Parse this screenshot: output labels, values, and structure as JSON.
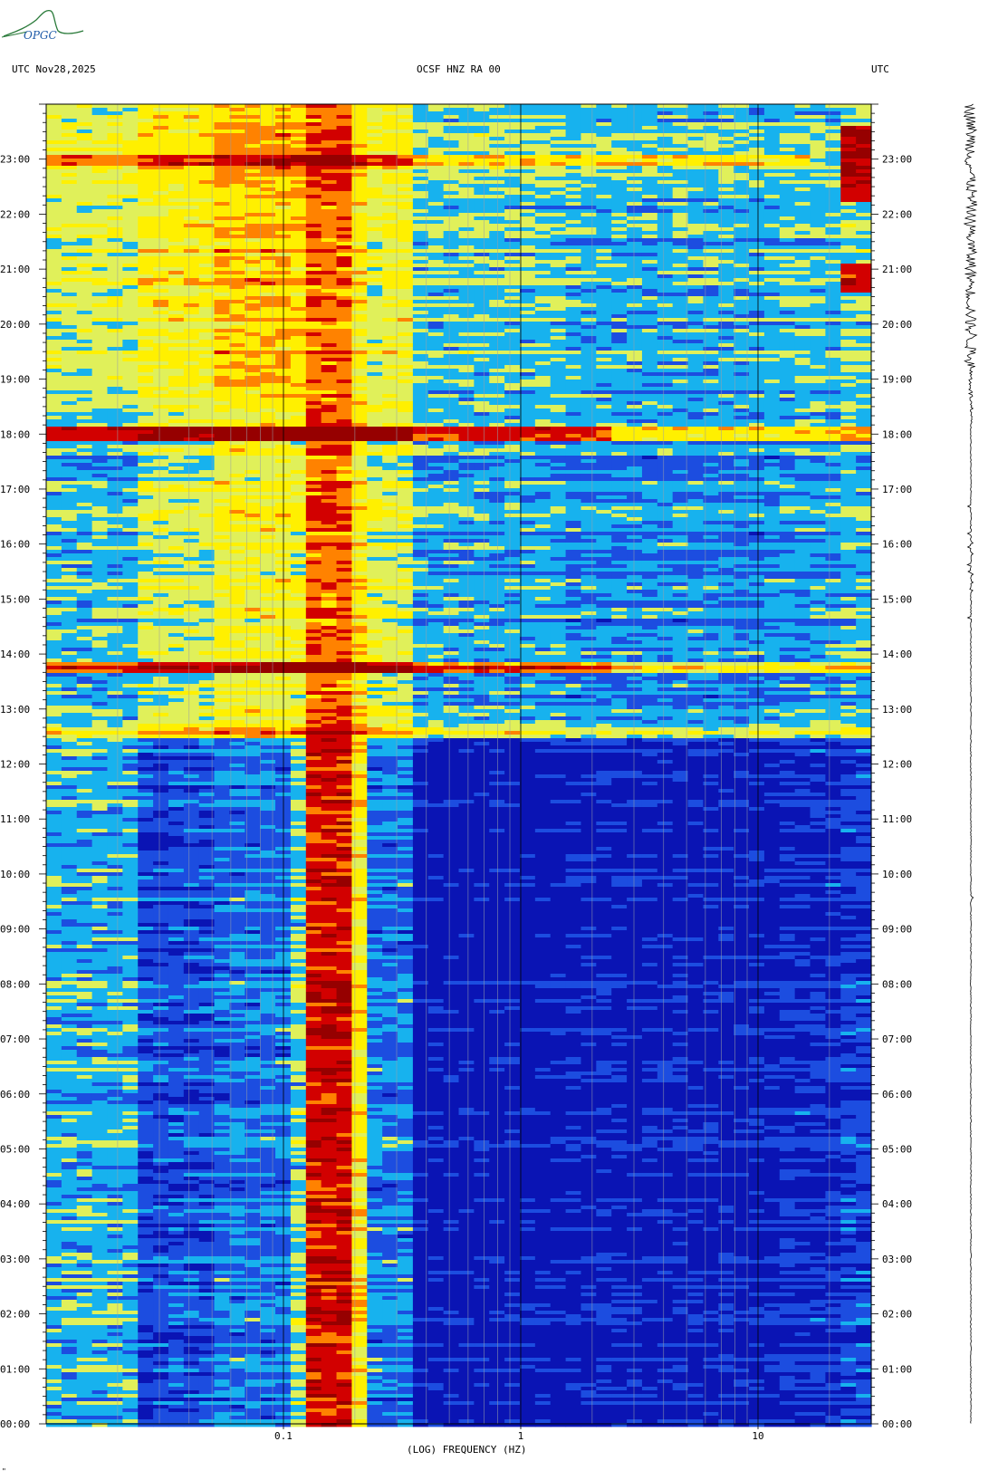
{
  "header": {
    "left_label": "UTC  Nov28,2025",
    "center_label": "OCSF HNZ RA 00",
    "right_label": "UTC",
    "logo_text": "OPGC"
  },
  "footer": {
    "mark": "\""
  },
  "chart_data": {
    "type": "heatmap",
    "subtype": "spectrogram",
    "title": "OCSF HNZ RA 00",
    "date": "Nov28,2025",
    "xlabel": "(LOG) FREQUENCY (HZ)",
    "ylabel": "UTC",
    "x_scale": "log",
    "xlim": [
      0.01,
      30
    ],
    "x_ticks": [
      {
        "value": 0.1,
        "label": "0.1"
      },
      {
        "value": 1,
        "label": "1"
      },
      {
        "value": 10,
        "label": "10"
      }
    ],
    "ylim_hours": [
      0,
      24
    ],
    "y_ticks": [
      "00:00",
      "01:00",
      "02:00",
      "03:00",
      "04:00",
      "05:00",
      "06:00",
      "07:00",
      "08:00",
      "09:00",
      "10:00",
      "11:00",
      "12:00",
      "13:00",
      "14:00",
      "15:00",
      "16:00",
      "17:00",
      "18:00",
      "19:00",
      "20:00",
      "21:00",
      "22:00",
      "23:00"
    ],
    "colormap": [
      "#0a14b4",
      "#1c4de0",
      "#17b2ee",
      "#e0f05a",
      "#fff000",
      "#ff8200",
      "#d20000",
      "#960000"
    ],
    "notable_features": [
      {
        "start": "12:30",
        "end": "24:00",
        "description": "elevated noise across all frequencies"
      },
      {
        "start": "13:40",
        "end": "13:50",
        "description": "broadband high-energy band"
      },
      {
        "start": "17:55",
        "end": "18:05",
        "description": "broadband high-energy band"
      },
      {
        "start": "20:35",
        "end": "21:10",
        "description": "high energy above 20 Hz"
      },
      {
        "start": "22:10",
        "end": "23:40",
        "description": "high energy above 20 Hz"
      }
    ]
  }
}
